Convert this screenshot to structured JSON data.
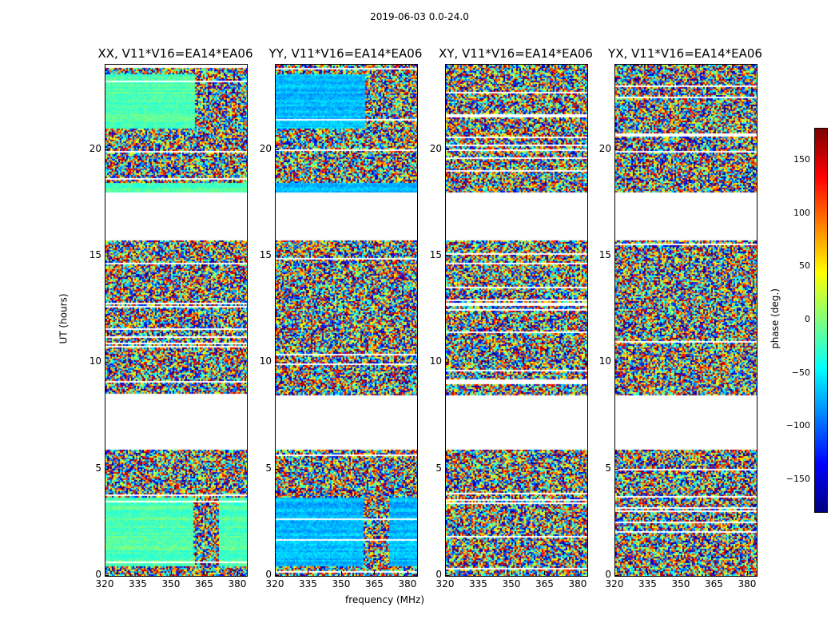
{
  "chart_data": {
    "type": "heatmap",
    "title": "2019-06-03 0.0-24.0",
    "xlabel": "frequency (MHz)",
    "ylabel": "UT (hours)",
    "x_ticks": [
      "320",
      "335",
      "350",
      "365",
      "380"
    ],
    "x_range": [
      320,
      384
    ],
    "y_ticks": [
      "0",
      "5",
      "10",
      "15",
      "20"
    ],
    "y_range": [
      0,
      24
    ],
    "panels": [
      {
        "title": "XX, V11*V16=EA14*EA06",
        "pol": "XX"
      },
      {
        "title": "YY, V11*V16=EA14*EA06",
        "pol": "YY"
      },
      {
        "title": "XY, V11*V16=EA14*EA06",
        "pol": "XY"
      },
      {
        "title": "YX, V11*V16=EA14*EA06",
        "pol": "YX"
      }
    ],
    "colorbar": {
      "label": "phase (deg.)",
      "ticks": [
        "150",
        "100",
        "50",
        "0",
        "−50",
        "−100",
        "−150"
      ],
      "range": [
        -180,
        180
      ],
      "colormap": "jet"
    },
    "flagged_ut_ranges": [
      [
        6.0,
        8.5
      ],
      [
        15.8,
        18.0
      ]
    ]
  }
}
